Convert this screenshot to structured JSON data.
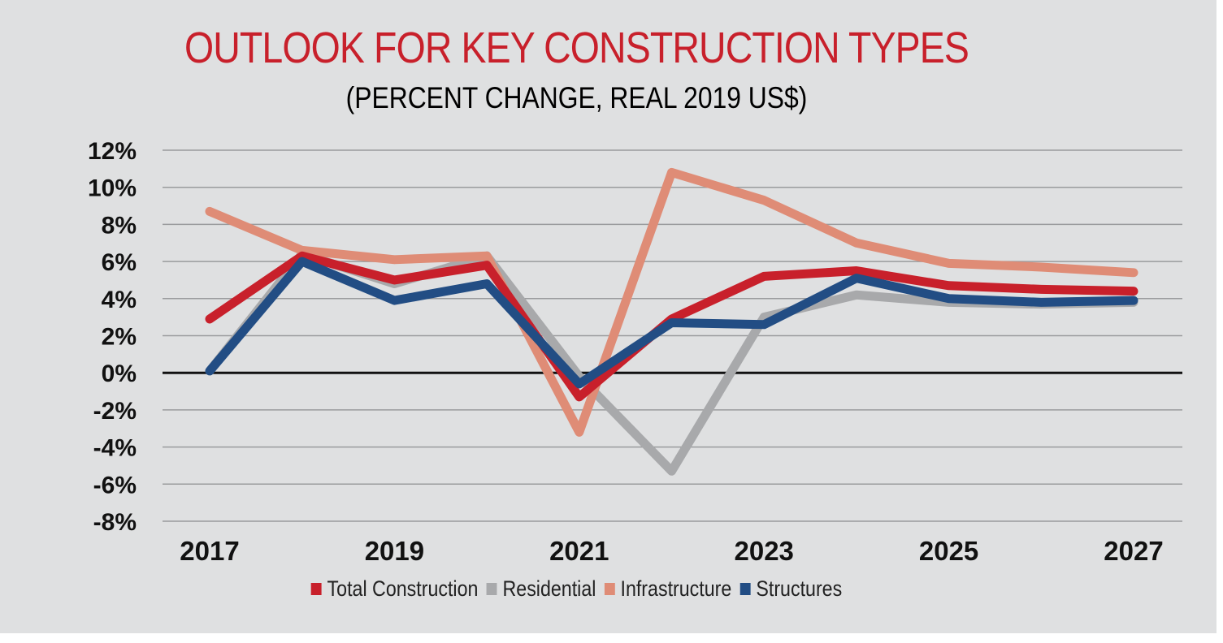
{
  "chart_data": {
    "type": "line",
    "title": "OUTLOOK FOR KEY CONSTRUCTION TYPES",
    "subtitle": "(PERCENT CHANGE, REAL 2019 US$)",
    "title_color": "#c8202b",
    "x": [
      2017,
      2018,
      2019,
      2020,
      2021,
      2022,
      2023,
      2024,
      2025,
      2026,
      2027
    ],
    "x_tick_labels": [
      "2017",
      "2019",
      "2021",
      "2023",
      "2025",
      "2027"
    ],
    "x_tick_values": [
      2017,
      2019,
      2021,
      2023,
      2025,
      2027
    ],
    "y_ticks": [
      12,
      10,
      8,
      6,
      4,
      2,
      0,
      -2,
      -4,
      -6,
      -8
    ],
    "y_tick_labels": [
      "12%",
      "10%",
      "8%",
      "6%",
      "4%",
      "2%",
      "0%",
      "-2%",
      "-4%",
      "-6%",
      "-8%"
    ],
    "ylim": [
      -8,
      12
    ],
    "xlabel": "",
    "ylabel": "",
    "grid": true,
    "legend_position": "bottom",
    "series": [
      {
        "name": "Residential",
        "color": "#a8a9ab",
        "values": [
          0.1,
          6.4,
          4.8,
          6.3,
          -0.2,
          -5.3,
          3.0,
          4.2,
          3.8,
          3.7,
          3.8
        ]
      },
      {
        "name": "Infrastructure",
        "color": "#df8c76",
        "values": [
          8.7,
          6.6,
          6.1,
          6.3,
          -3.2,
          10.8,
          9.3,
          7.0,
          5.9,
          5.7,
          5.4
        ]
      },
      {
        "name": "Total Construction",
        "color": "#c8202b",
        "values": [
          2.9,
          6.3,
          5.0,
          5.8,
          -1.3,
          2.9,
          5.2,
          5.5,
          4.7,
          4.5,
          4.4
        ]
      },
      {
        "name": "Structures",
        "color": "#224d84",
        "values": [
          0.1,
          6.0,
          3.9,
          4.8,
          -0.6,
          2.7,
          2.6,
          5.1,
          4.0,
          3.8,
          3.9
        ]
      }
    ],
    "legend_order": [
      "Total Construction",
      "Residential",
      "Infrastructure",
      "Structures"
    ]
  }
}
